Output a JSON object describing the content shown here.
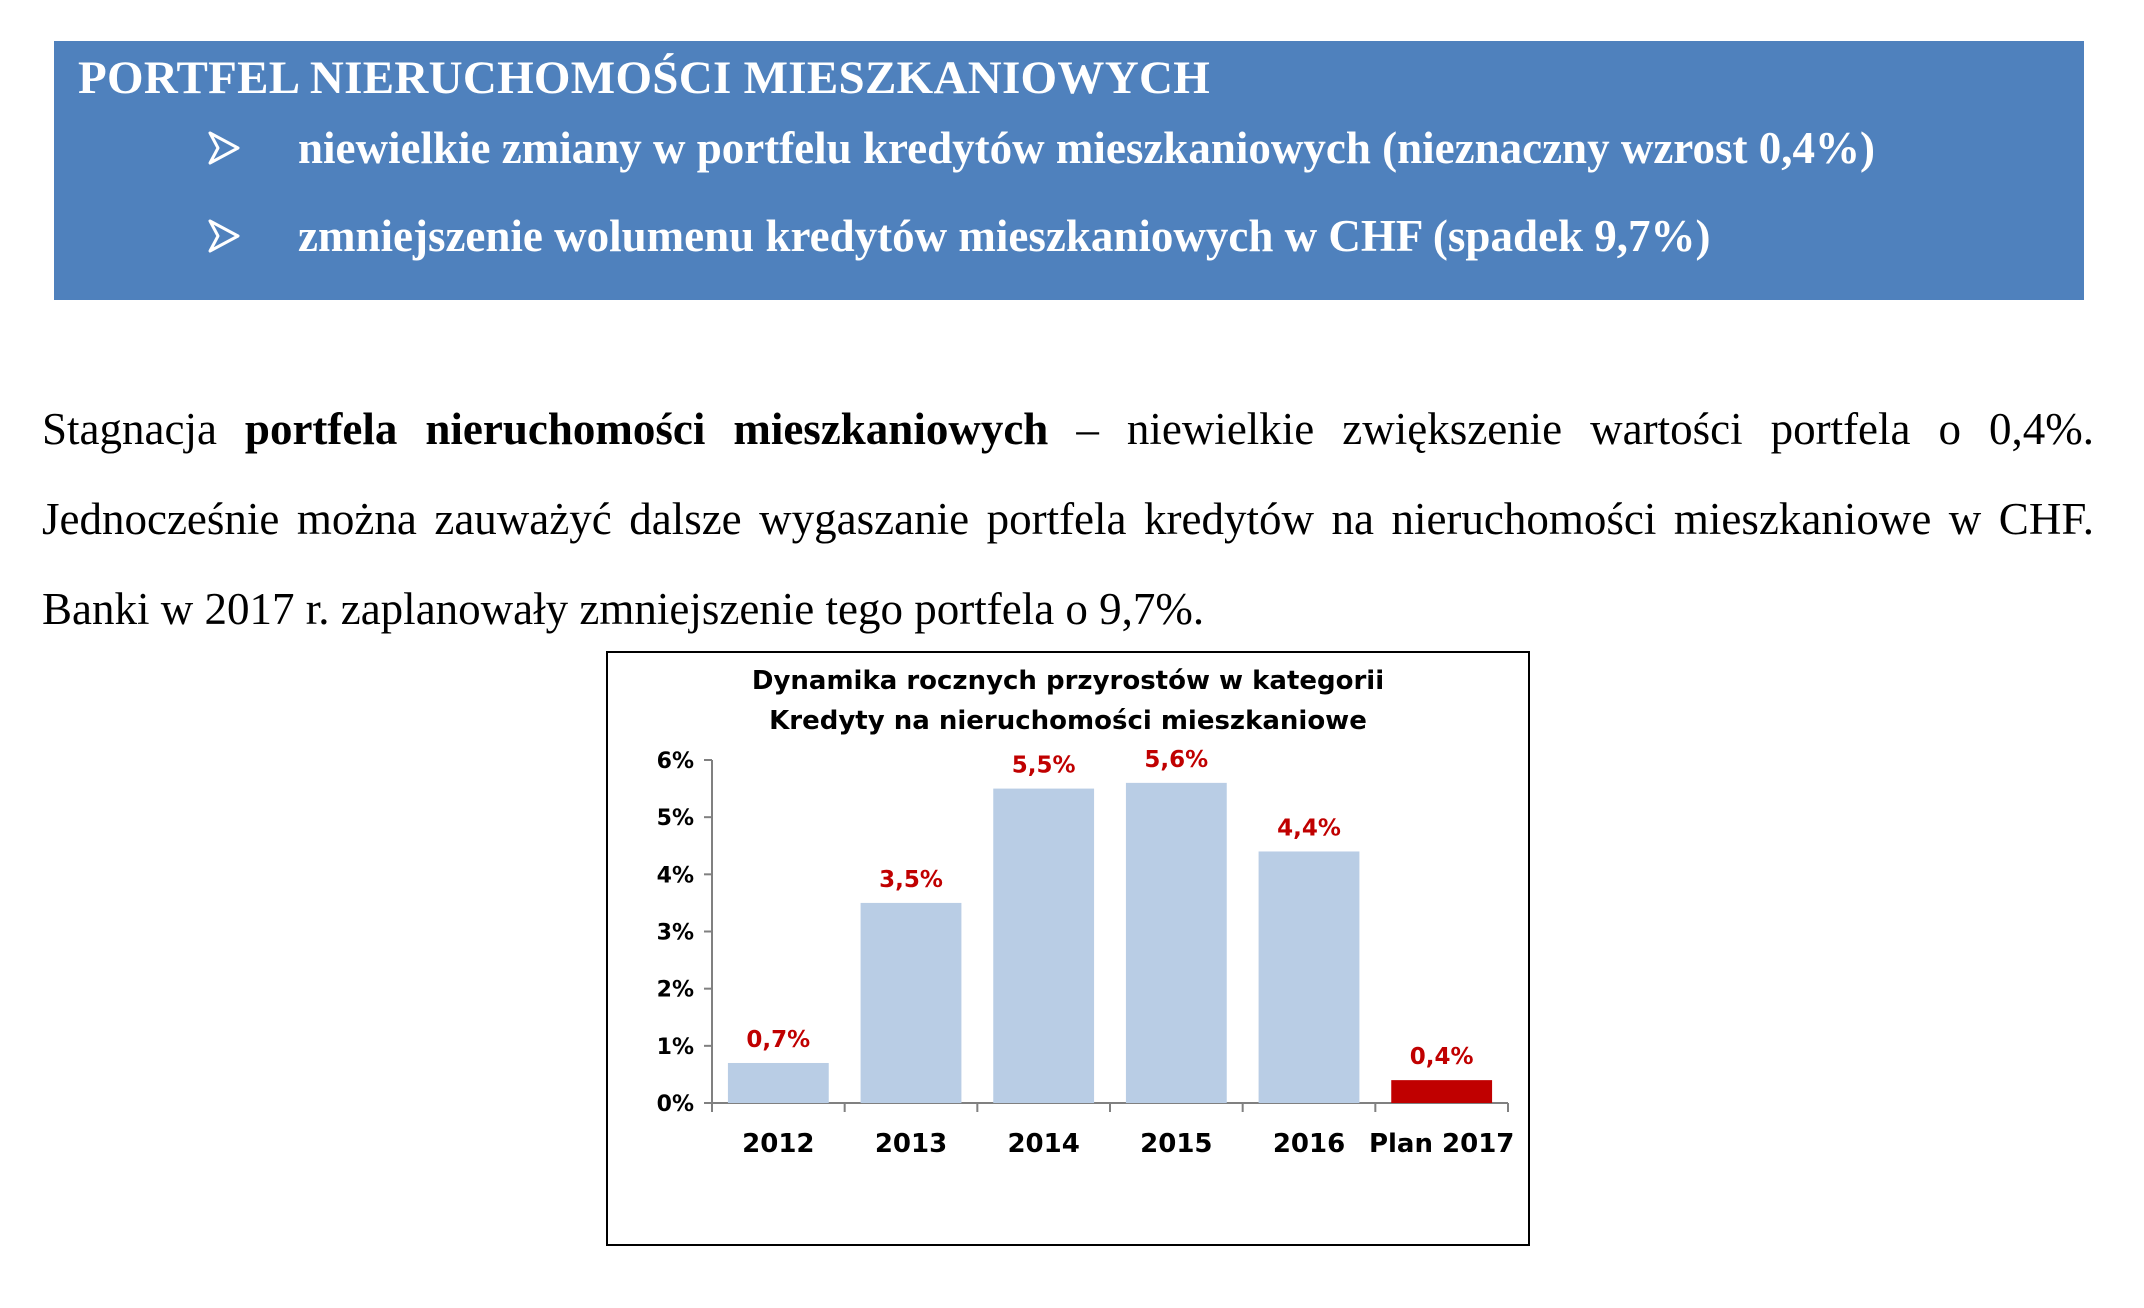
{
  "banner": {
    "title": "PORTFEL NIERUCHOMOŚCI MIESZKANIOWYCH",
    "bullets": [
      "niewielkie zmiany w portfelu kredytów mieszkaniowych (nieznaczny wzrost 0,4%)",
      "zmniejszenie wolumenu kredytów mieszkaniowych w CHF (spadek 9,7%)"
    ],
    "background_color": "#4f81bd"
  },
  "paragraph": {
    "lead": "Stagnacja ",
    "bold": "portfela nieruchomości mieszkaniowych",
    "rest": " – niewielkie zwiększenie wartości portfela o 0,4%. Jednocześnie można zauważyć dalsze wygaszanie portfela kredytów na nieruchomości mieszkaniowe w CHF. Banki w 2017 r. zaplanowały zmniejszenie tego portfela o 9,7%."
  },
  "chart_data": {
    "type": "bar",
    "title": "Dynamika rocznych przyrostów w kategorii",
    "subtitle": "Kredyty na nieruchomości mieszkaniowe",
    "categories": [
      "2012",
      "2013",
      "2014",
      "2015",
      "2016",
      "Plan 2017"
    ],
    "values": [
      0.7,
      3.5,
      5.5,
      5.6,
      4.4,
      0.4
    ],
    "data_labels": [
      "0,7%",
      "3,5%",
      "5,5%",
      "5,6%",
      "4,4%",
      "0,4%"
    ],
    "ylim": [
      0,
      6
    ],
    "yticks": [
      "0%",
      "1%",
      "2%",
      "3%",
      "4%",
      "5%",
      "6%"
    ],
    "grid": false,
    "bar_color": "#b9cde5",
    "highlight_color": "#c00000",
    "highlight_index": 5,
    "label_color": "#c00000"
  }
}
